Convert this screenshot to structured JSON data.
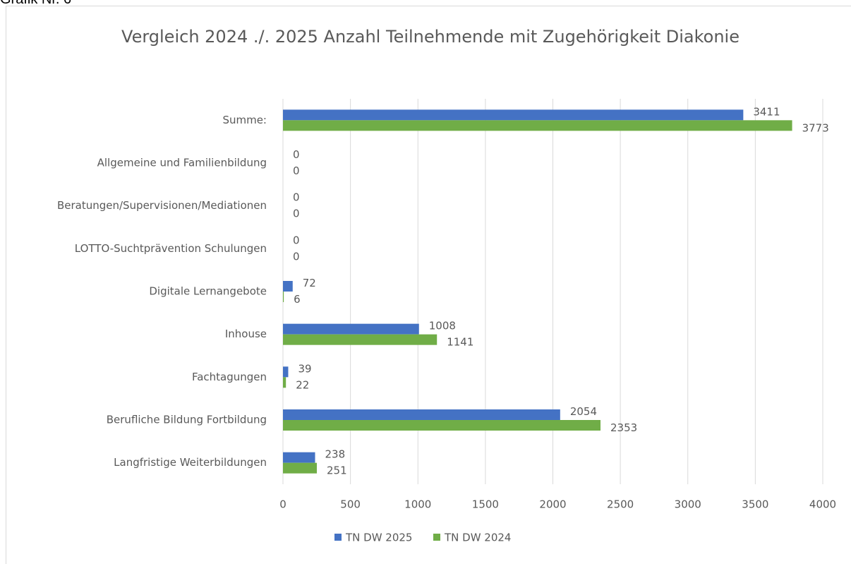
{
  "caption": "Grafik Nr. 6",
  "chart_data": {
    "type": "hbar",
    "title": "Vergleich 2024 ./. 2025 Anzahl Teilnehmende mit Zugehörigkeit Diakonie",
    "categories": [
      "Summe:",
      "Allgemeine und Familienbildung",
      "Beratungen/Supervisionen/Mediationen",
      "LOTTO-Suchtprävention Schulungen",
      "Digitale Lernangebote",
      "Inhouse",
      "Fachtagungen",
      "Berufliche Bildung Fortbildung",
      "Langfristige Weiterbildungen"
    ],
    "series": [
      {
        "name": "TN DW 2025",
        "color": "#4472c4",
        "values": [
          3411,
          0,
          0,
          0,
          72,
          1008,
          39,
          2054,
          238
        ]
      },
      {
        "name": "TN DW 2024",
        "color": "#70ad47",
        "values": [
          3773,
          0,
          0,
          0,
          6,
          1141,
          22,
          2353,
          251
        ]
      }
    ],
    "xlim": [
      0,
      4000
    ],
    "xticks": [
      0,
      500,
      1000,
      1500,
      2000,
      2500,
      3000,
      3500,
      4000
    ],
    "grid": true,
    "legend": "bottom"
  }
}
